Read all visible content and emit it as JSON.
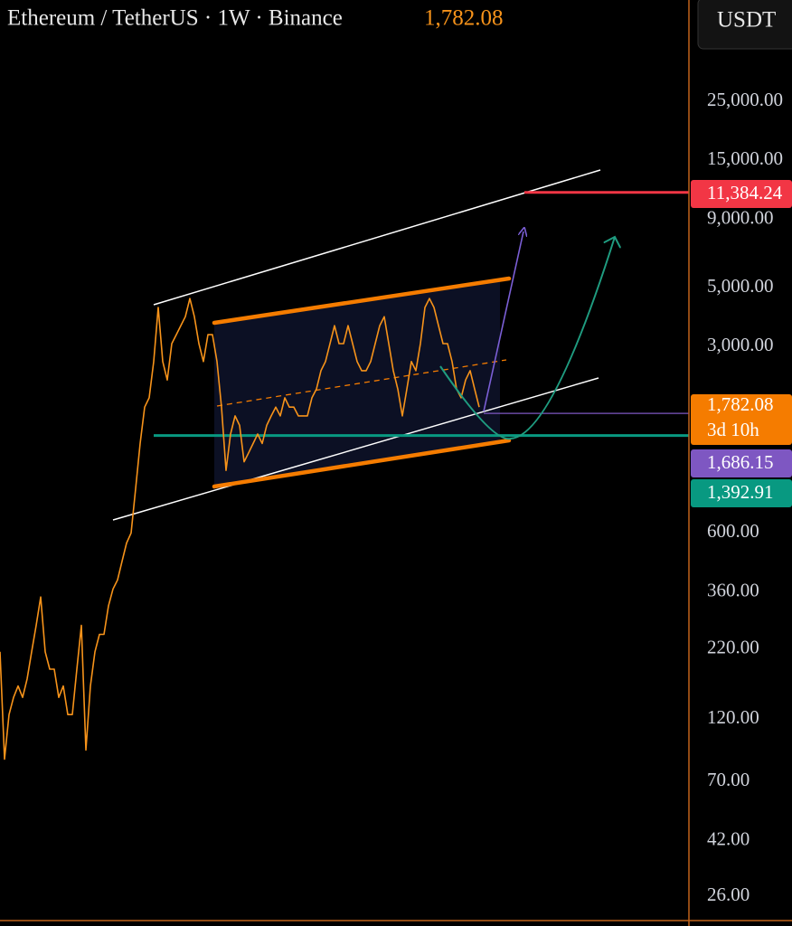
{
  "chart_data": {
    "type": "line",
    "title": "Ethereum / TetherUS · 1W · Binance",
    "currency": "USDT",
    "log_scale": true,
    "color": "#f7931a",
    "values": [
      215,
      85,
      125,
      145,
      160,
      145,
      170,
      215,
      270,
      345,
      215,
      185,
      185,
      145,
      160,
      125,
      125,
      185,
      270,
      92,
      160,
      215,
      250,
      250,
      320,
      370,
      400,
      470,
      550,
      600,
      880,
      1300,
      1780,
      1930,
      2640,
      4210,
      2640,
      2250,
      3080,
      3330,
      3600,
      3890,
      4550,
      3890,
      3080,
      2640,
      3330,
      3330,
      2640,
      1780,
      1030,
      1410,
      1650,
      1520,
      1110,
      1200,
      1300,
      1410,
      1300,
      1520,
      1650,
      1780,
      1650,
      1930,
      1780,
      1780,
      1650,
      1650,
      1650,
      1930,
      2080,
      2440,
      2640,
      3080,
      3600,
      3080,
      3080,
      3600,
      3080,
      2640,
      2440,
      2440,
      2640,
      3080,
      3600,
      3890,
      3080,
      2440,
      2080,
      1650,
      2080,
      2640,
      2440,
      3080,
      4210,
      4550,
      4210,
      3600,
      3080,
      3080,
      2640,
      2080,
      1930,
      2250,
      2440,
      2080,
      1780
    ],
    "ylim": [
      20.75,
      60000
    ],
    "yticks": [
      {
        "value": 25000,
        "label": "25,000.00"
      },
      {
        "value": 15000,
        "label": "15,000.00"
      },
      {
        "value": 9000,
        "label": "9,000.00"
      },
      {
        "value": 5000,
        "label": "5,000.00"
      },
      {
        "value": 3000,
        "label": "3,000.00"
      },
      {
        "value": 600,
        "label": "600.00"
      },
      {
        "value": 360,
        "label": "360.00"
      },
      {
        "value": 220,
        "label": "220.00"
      },
      {
        "value": 120,
        "label": "120.00"
      },
      {
        "value": 70,
        "label": "70.00"
      },
      {
        "value": 42,
        "label": "42.00"
      },
      {
        "value": 26,
        "label": "26.00"
      }
    ],
    "price_lines": [
      {
        "value": 11384.24,
        "label": "11,384.24",
        "color": "#f23645"
      },
      {
        "value": 1686.15,
        "label": "1,686.15",
        "color": "#7e57c2"
      },
      {
        "value": 1392.91,
        "label": "1,392.91",
        "color": "#089981"
      }
    ],
    "last_price": {
      "value": 1782.08,
      "label": "1,782.08",
      "countdown": "3d 10h",
      "color": "#f57c00"
    }
  }
}
